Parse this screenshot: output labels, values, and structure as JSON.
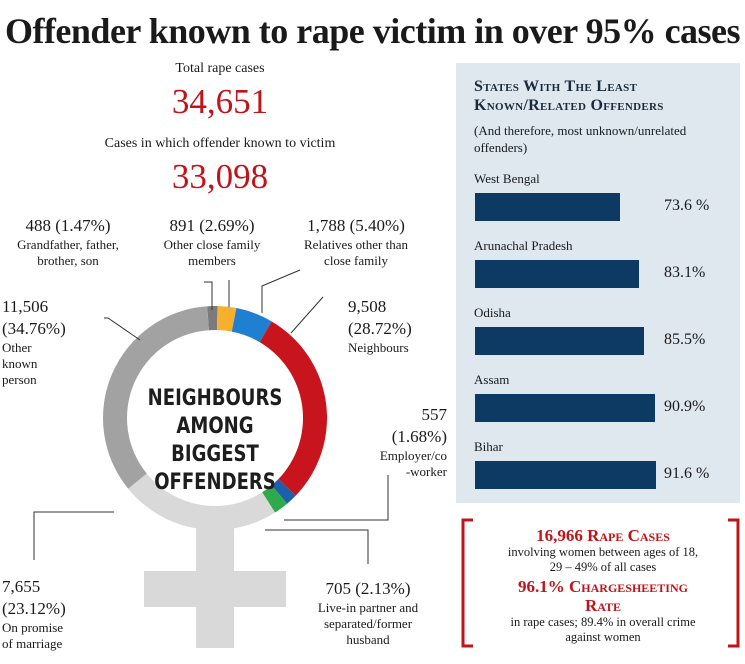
{
  "title": "Offender known to rape victim in over 95% cases",
  "total": {
    "label": "Total rape cases",
    "value": "34,651"
  },
  "known": {
    "label": "Cases in which offender known to victim",
    "value": "33,098"
  },
  "center_text": [
    "NEIGHBOURS",
    "AMONG BIGGEST",
    "OFFENDERS"
  ],
  "chart_data": [
    {
      "type": "pie",
      "series": [
        {
          "name": "Grandfather, father, brother, son",
          "value": 488,
          "percent": 1.47,
          "color": "#7b7b7b"
        },
        {
          "name": "Other close family members",
          "value": 891,
          "percent": 2.69,
          "color": "#f5b12e"
        },
        {
          "name": "Relatives other than close family",
          "value": 1788,
          "percent": 5.4,
          "color": "#1f7fd1"
        },
        {
          "name": "Neighbours",
          "value": 9508,
          "percent": 28.72,
          "color": "#c8141c"
        },
        {
          "name": "Employer/co-worker",
          "value": 557,
          "percent": 1.68,
          "color": "#1d5fa8"
        },
        {
          "name": "Live-in partner and separated/former husband",
          "value": 705,
          "percent": 2.13,
          "color": "#2eaa4a"
        },
        {
          "name": "On promise of marriage",
          "value": 7655,
          "percent": 23.12,
          "color": "#d9d9d9"
        },
        {
          "name": "Other known person",
          "value": 11506,
          "percent": 34.76,
          "color": "#a2a2a2"
        }
      ]
    },
    {
      "type": "bar",
      "title": "States With The Least Known/Related Offenders",
      "subtitle": "(And therefore, most unknown/unrelated offenders)",
      "categories": [
        "West Bengal",
        "Arunachal Pradesh",
        "Odisha",
        "Assam",
        "Bihar"
      ],
      "values": [
        73.6,
        83.1,
        85.5,
        90.9,
        91.6
      ],
      "value_labels": [
        "73.6 %",
        "83.1%",
        "85.5%",
        "90.9%",
        "91.6 %"
      ]
    }
  ],
  "annotations": {
    "grandfather": {
      "value": "488 (1.47%)",
      "label": [
        "Grandfather, father,",
        "brother, son"
      ]
    },
    "close_family": {
      "value": "891 (2.69%)",
      "label": [
        "Other close family",
        "members"
      ]
    },
    "relatives": {
      "value": "1,788 (5.40%)",
      "label": [
        "Relatives other than",
        "close family"
      ]
    },
    "neighbours": {
      "value1": "9,508",
      "value2": "(28.72%)",
      "label": "Neighbours"
    },
    "employer": {
      "value1": "557",
      "value2": "(1.68%)",
      "label": [
        "Employer/co",
        "-worker"
      ]
    },
    "livein": {
      "value": "705 (2.13%)",
      "label": [
        "Live-in partner and",
        "separated/former",
        "husband"
      ]
    },
    "marriage": {
      "value1": "7,655",
      "value2": "(23.12%)",
      "label": [
        "On promise",
        "of marriage"
      ]
    },
    "other": {
      "value1": "11,506",
      "value2": "(34.76%)",
      "label": [
        "Other",
        "known",
        "person"
      ]
    }
  },
  "box": {
    "line1": "16,966 Rape Cases",
    "line2": "involving women between ages of 18,",
    "line3": "29 – 49% of all cases",
    "line4": "96.1% Chargesheeting",
    "line5": "Rate",
    "line6": "in rape cases; 89.4% in overall crime",
    "line7": "against women"
  }
}
